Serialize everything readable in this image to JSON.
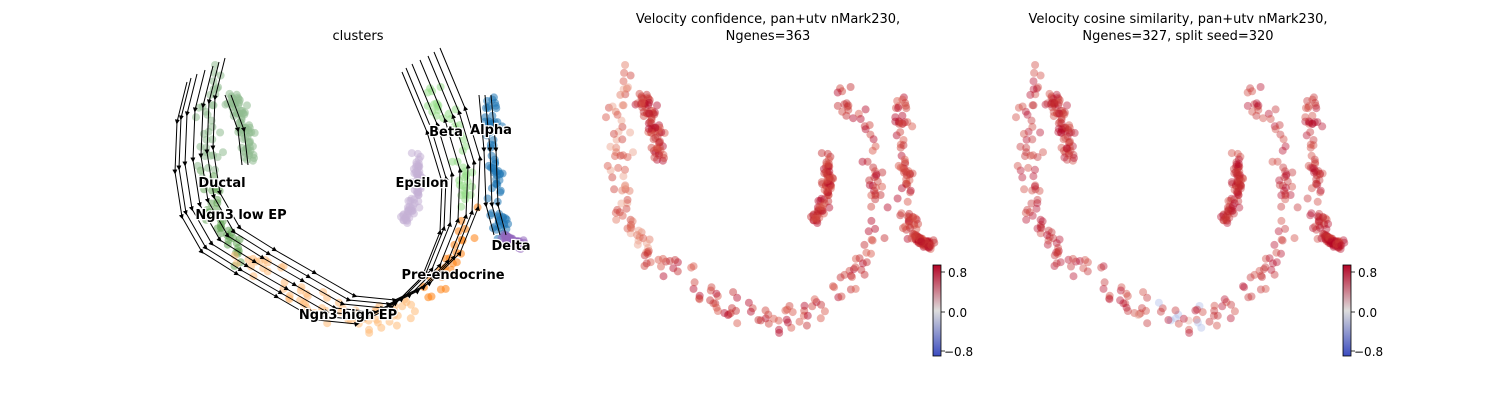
{
  "chart_data": [
    {
      "type": "scatter",
      "title": "clusters",
      "legend": "on data",
      "clusters": [
        {
          "name": "Ductal",
          "color": "#8fbc8f"
        },
        {
          "name": "Ngn3 low EP",
          "color": "#66a559"
        },
        {
          "name": "Ngn3 high EP",
          "color": "#ffbb78"
        },
        {
          "name": "Pre-endocrine",
          "color": "#ff7f0e"
        },
        {
          "name": "Beta",
          "color": "#98df8a"
        },
        {
          "name": "Alpha",
          "color": "#1f77b4"
        },
        {
          "name": "Delta",
          "color": "#9467bd"
        },
        {
          "name": "Epsilon",
          "color": "#c5b0d5"
        }
      ],
      "streamlines": true,
      "axes": "off"
    },
    {
      "type": "scatter",
      "title_line1": "Velocity confidence, pan+utv nMark230,",
      "title_line2": "Ngenes=363",
      "colormap": "coolwarm",
      "colorbar": {
        "min": -1.0,
        "max": 1.0,
        "ticks": [
          "0.8",
          "0.0",
          "−0.8"
        ]
      },
      "axes": "off"
    },
    {
      "type": "scatter",
      "title_line1": "Velocity cosine similarity, pan+utv nMark230,",
      "title_line2": "Ngenes=327, split seed=320",
      "colormap": "coolwarm",
      "colorbar": {
        "min": -1.0,
        "max": 1.0,
        "ticks": [
          "0.8",
          "0.0",
          "−0.8"
        ]
      },
      "axes": "off"
    }
  ],
  "colors": {
    "high": "#b40426",
    "mid_high": "#d24b40",
    "light": "#f3c4ad",
    "low": "#3b4cc0",
    "neutral": "#dddddd"
  }
}
